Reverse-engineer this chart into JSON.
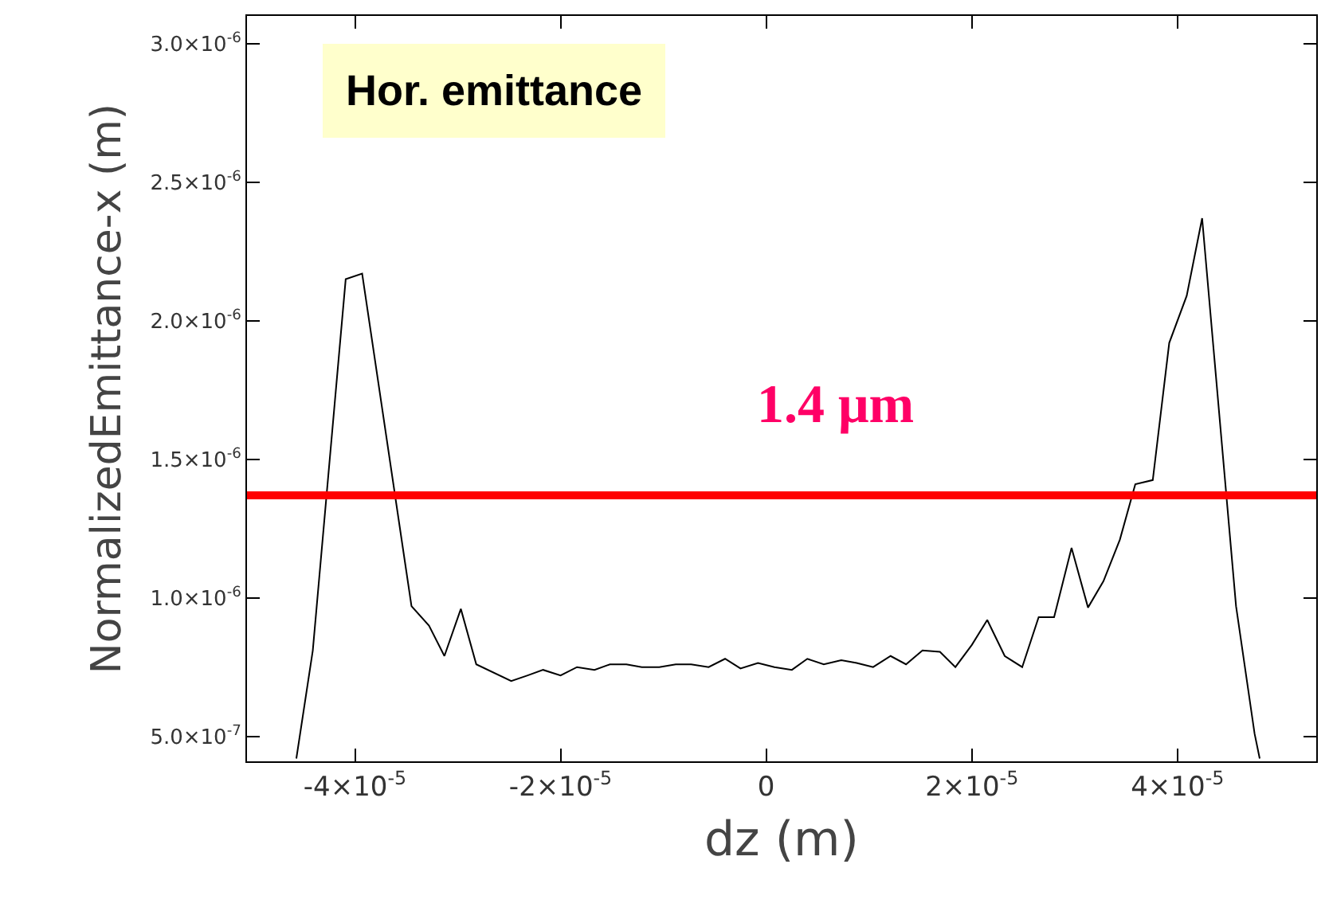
{
  "chart_data": {
    "type": "line",
    "xlabel": "dz (m)",
    "ylabel": "NormalizedEmittance-x (m)",
    "annotations": [
      "Hor. emittance"
    ],
    "x": [
      -4.57e-05,
      -4.41e-05,
      -4.09e-05,
      -3.93e-05,
      -3.45e-05,
      -3.28e-05,
      -3.13e-05,
      -2.97e-05,
      -2.82e-05,
      -2.48e-05,
      -2.32e-05,
      -2.17e-05,
      -2e-05,
      -1.84e-05,
      -1.67e-05,
      -1.52e-05,
      -1.36e-05,
      -1.21e-05,
      -1.04e-05,
      -8.8e-06,
      -7.3e-06,
      -5.6e-06,
      -4e-06,
      -2.5e-06,
      -8e-07,
      8e-07,
      2.5e-06,
      4e-06,
      5.6e-06,
      7.3e-06,
      8.8e-06,
      1.04e-05,
      1.21e-05,
      1.36e-05,
      1.52e-05,
      1.69e-05,
      1.84e-05,
      2e-05,
      2.15e-05,
      2.32e-05,
      2.49e-05,
      2.65e-05,
      2.8e-05,
      2.97e-05,
      3.13e-05,
      3.28e-05,
      3.44e-05,
      3.59e-05,
      3.76e-05,
      3.92e-05,
      4.09e-05,
      4.24e-05,
      4.57e-05,
      4.75e-05,
      4.8e-05
    ],
    "series": [
      {
        "color": "#000000",
        "values": [
          4.2e-07,
          8.1e-07,
          2.15e-06,
          2.17e-06,
          9.7e-07,
          9e-07,
          7.9e-07,
          9.6e-07,
          7.6e-07,
          7e-07,
          7.2e-07,
          7.4e-07,
          7.2e-07,
          7.5e-07,
          7.4e-07,
          7.6e-07,
          7.6e-07,
          7.5e-07,
          7.5e-07,
          7.6e-07,
          7.6e-07,
          7.5e-07,
          7.8e-07,
          7.45e-07,
          7.65e-07,
          7.5e-07,
          7.4e-07,
          7.8e-07,
          7.6e-07,
          7.75e-07,
          7.65e-07,
          7.5e-07,
          7.9e-07,
          7.6e-07,
          8.1e-07,
          8.05e-07,
          7.5e-07,
          8.3e-07,
          9.2e-07,
          7.9e-07,
          7.5e-07,
          9.3e-07,
          9.3e-07,
          1.18e-06,
          9.65e-07,
          1.06e-06,
          1.21e-06,
          1.41e-06,
          1.425e-06,
          1.92e-06,
          2.09e-06,
          2.37e-06,
          9.7e-07,
          5.1e-07,
          4.2e-07
        ]
      }
    ],
    "xlim": [
      -5.05e-05,
      5.35e-05
    ],
    "xticks": [
      {
        "value": -4e-05,
        "label": "-4×10$^{-5}$"
      },
      {
        "value": -2e-05,
        "label": "-2×10$^{-5}$"
      },
      0,
      {
        "value": 2e-05,
        "label": "2×10$^{-5}$"
      },
      {
        "value": 4e-05,
        "label": "4×10$^{-5}$"
      }
    ],
    "ylim": [
      4.1e-07,
      3.1e-06
    ],
    "yticks": [
      {
        "value": 5e-07,
        "label": "5.0×10$^{-7}$"
      },
      {
        "value": 1e-06,
        "label": "1.0×10$^{-6}$"
      },
      {
        "value": 1.5e-06,
        "label": "1.5×10$^{-6}$"
      },
      {
        "value": 2e-06,
        "label": "2.0×10$^{-6}$"
      },
      {
        "value": 2.5e-06,
        "label": "2.5×10$^{-6}$"
      },
      {
        "value": 3e-06,
        "label": "3.0×10$^{-6}$"
      }
    ],
    "ref_lines": [
      {
        "axis": "y",
        "value": 1.37e-06,
        "label": "1.4 μm",
        "color": "#ff0000"
      }
    ],
    "grid": false,
    "marker": "none",
    "line_style": "solid"
  }
}
